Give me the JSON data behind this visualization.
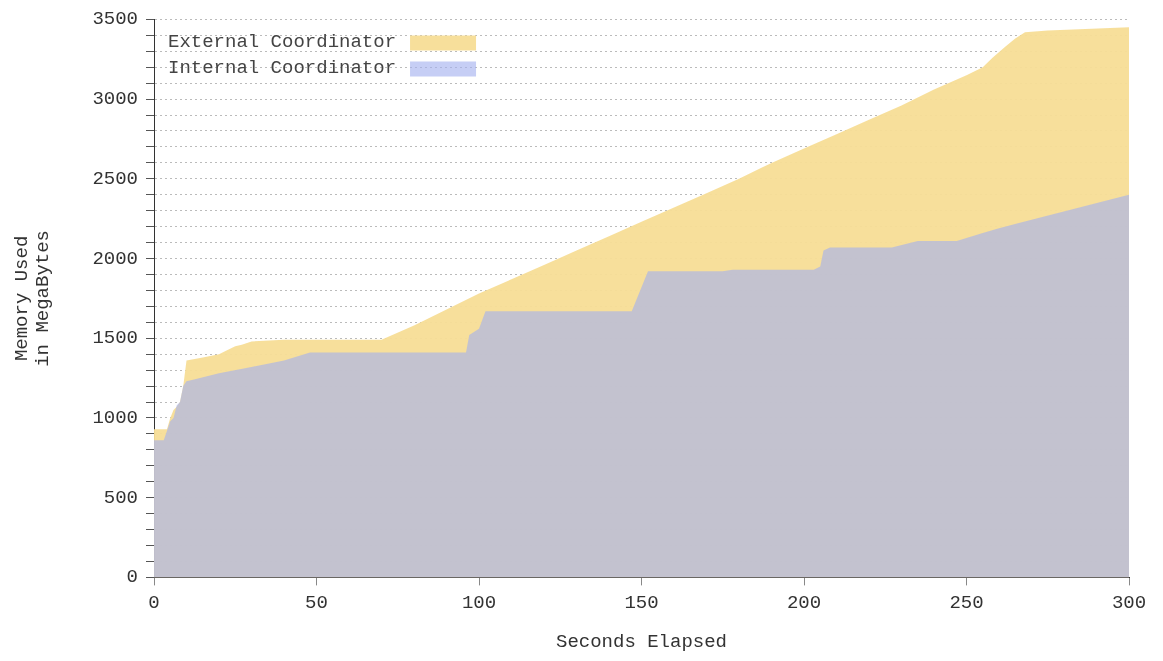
{
  "chart_data": {
    "type": "area",
    "xlabel": "Seconds Elapsed",
    "ylabel": "Memory Used\nin MegaBytes",
    "xlim": [
      0,
      300
    ],
    "xticks": [
      0,
      50,
      100,
      150,
      200,
      250,
      300
    ],
    "ylim": [
      0,
      3500
    ],
    "yticks": [
      0,
      {
        "value": 100,
        "label": null
      },
      {
        "value": 200,
        "label": null
      },
      {
        "value": 300,
        "label": null
      },
      {
        "value": 400,
        "label": null
      },
      500,
      {
        "value": 600,
        "label": null
      },
      {
        "value": 700,
        "label": null
      },
      {
        "value": 800,
        "label": null
      },
      {
        "value": 900,
        "label": null
      },
      1000,
      {
        "value": 1100,
        "label": null
      },
      {
        "value": 1200,
        "label": null
      },
      {
        "value": 1300,
        "label": null
      },
      {
        "value": 1400,
        "label": null
      },
      1500,
      {
        "value": 1600,
        "label": null
      },
      {
        "value": 1700,
        "label": null
      },
      {
        "value": 1800,
        "label": null
      },
      {
        "value": 1900,
        "label": null
      },
      2000,
      {
        "value": 2100,
        "label": null
      },
      {
        "value": 2200,
        "label": null
      },
      {
        "value": 2300,
        "label": null
      },
      {
        "value": 2400,
        "label": null
      },
      2500,
      {
        "value": 2600,
        "label": null
      },
      {
        "value": 2700,
        "label": null
      },
      {
        "value": 2800,
        "label": null
      },
      {
        "value": 2900,
        "label": null
      },
      3000,
      {
        "value": 3100,
        "label": null
      },
      {
        "value": 3200,
        "label": null
      },
      {
        "value": 3300,
        "label": null
      },
      {
        "value": 3400,
        "label": null
      },
      3500
    ],
    "grid": "y",
    "legend": "top left",
    "series": [
      {
        "name": "External Coordinator",
        "color": "#f7dd96",
        "x": [
          0,
          4,
          5,
          6,
          7,
          8,
          9,
          10,
          15,
          20,
          22,
          25,
          27,
          30,
          40,
          50,
          70,
          80,
          90,
          100,
          110,
          120,
          130,
          140,
          150,
          160,
          170,
          180,
          190,
          200,
          210,
          220,
          230,
          240,
          250,
          255,
          258,
          262,
          265,
          268,
          275,
          300
        ],
        "values": [
          930,
          930,
          1000,
          1050,
          1070,
          1100,
          1200,
          1360,
          1380,
          1400,
          1420,
          1450,
          1460,
          1480,
          1490,
          1490,
          1490,
          1580,
          1680,
          1780,
          1870,
          1960,
          2050,
          2140,
          2230,
          2320,
          2410,
          2500,
          2600,
          2690,
          2780,
          2870,
          2960,
          3060,
          3150,
          3200,
          3260,
          3330,
          3380,
          3420,
          3430,
          3450
        ]
      },
      {
        "name": "Internal Coordinator",
        "color": "#a4b1ef",
        "x": [
          0,
          3,
          5,
          6,
          7,
          8,
          9,
          10,
          12,
          20,
          30,
          40,
          48,
          96,
          97,
          100,
          102,
          147,
          149,
          152,
          175,
          178,
          203,
          205,
          206,
          208,
          227,
          235,
          247,
          255,
          260,
          300
        ],
        "values": [
          860,
          860,
          980,
          1000,
          1080,
          1100,
          1200,
          1230,
          1240,
          1280,
          1320,
          1360,
          1410,
          1410,
          1520,
          1560,
          1670,
          1670,
          1770,
          1920,
          1920,
          1930,
          1930,
          1950,
          2050,
          2070,
          2070,
          2110,
          2110,
          2160,
          2190,
          2400
        ]
      }
    ]
  }
}
